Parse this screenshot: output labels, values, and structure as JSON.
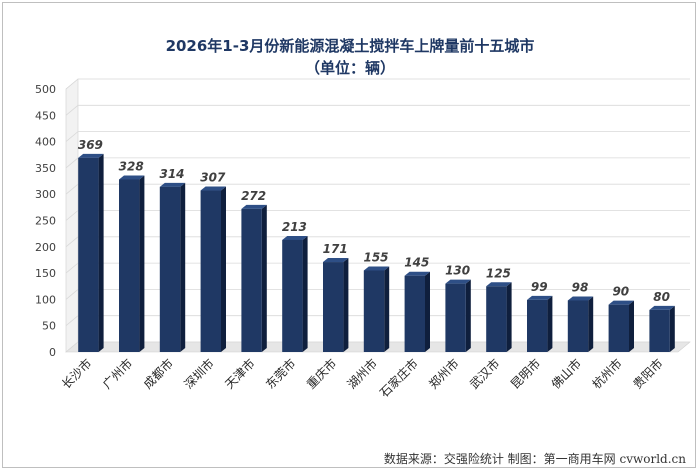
{
  "chart_data": {
    "type": "bar",
    "title": "2026年1-3月份新能源混凝土搅拌车上牌量前十五城市",
    "subtitle": "（单位：辆）",
    "categories": [
      "长沙市",
      "广州市",
      "成都市",
      "深圳市",
      "天津市",
      "东莞市",
      "重庆市",
      "湖州市",
      "石家庄市",
      "郑州市",
      "武汉市",
      "昆明市",
      "佛山市",
      "杭州市",
      "贵阳市"
    ],
    "values": [
      369,
      328,
      314,
      307,
      272,
      213,
      171,
      155,
      145,
      130,
      125,
      99,
      98,
      90,
      80
    ],
    "yticks": [
      0,
      50,
      100,
      150,
      200,
      250,
      300,
      350,
      400,
      450,
      500
    ],
    "ylim": [
      0,
      500
    ],
    "grid": true,
    "colors": {
      "bar": "#1f3864",
      "bar_side": "#0f1f3d",
      "grid": "#d9d9d9",
      "wall": "#f2f2f2",
      "label": "#404040"
    }
  },
  "footer": "数据来源：交强险统计  制图：第一商用车网 cvworld.cn"
}
